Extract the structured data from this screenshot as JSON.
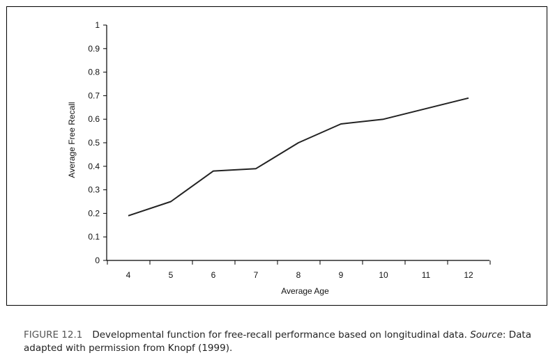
{
  "caption": {
    "figure_label": "FIGURE 12.1",
    "text_before_source": "Developmental function for free-recall performance based on longitudinal data.",
    "source_word": "Source",
    "source_punct": ":",
    "text_after_source": "Data adapted with permission from Knopf (1999)."
  },
  "chart_data": {
    "type": "line",
    "title": "",
    "xlabel": "Average Age",
    "ylabel": "Average Free Recall",
    "categories": [
      "4",
      "5",
      "6",
      "7",
      "8",
      "9",
      "10",
      "11",
      "12"
    ],
    "x_tick_labels": [
      "4",
      "5",
      "6",
      "7",
      "8",
      "9",
      "10",
      "11",
      "12"
    ],
    "y_tick_labels": [
      "0",
      "0.1",
      "0.2",
      "0.3",
      "0.4",
      "0.5",
      "0.6",
      "0.7",
      "0.8",
      "0.9",
      "1"
    ],
    "ylim": [
      0,
      1
    ],
    "grid": false,
    "series": [
      {
        "x": [
          4,
          5,
          6,
          7,
          8,
          9,
          10,
          12
        ],
        "values": [
          0.19,
          0.25,
          0.38,
          0.39,
          0.5,
          0.58,
          0.6,
          0.69
        ]
      }
    ],
    "colors": {
      "line": "#222222",
      "axis": "#000000"
    }
  }
}
